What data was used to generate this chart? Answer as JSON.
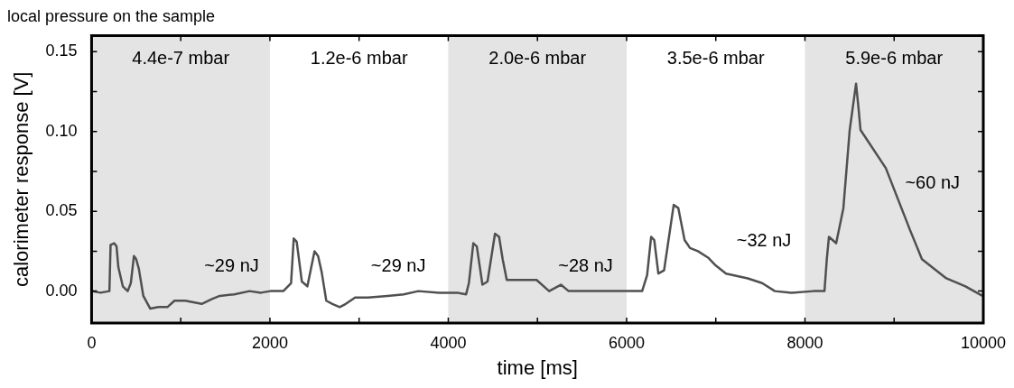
{
  "chart_data": {
    "type": "line",
    "title": "local pressure on the sample",
    "xlabel": "time [ms]",
    "ylabel": "calorimeter response [V]",
    "series": [
      {
        "color": "#505050",
        "x": [
          0,
          100,
          200,
          213,
          253,
          280,
          300,
          350,
          405,
          440,
          475,
          500,
          530,
          580,
          658,
          750,
          850,
          930,
          1050,
          1235,
          1350,
          1437,
          1600,
          1771,
          1900,
          2004,
          2150,
          2237,
          2267,
          2300,
          2358,
          2420,
          2500,
          2540,
          2580,
          2632,
          2700,
          2783,
          2850,
          2955,
          3100,
          3320,
          3500,
          3664,
          3900,
          4099,
          4200,
          4231,
          4281,
          4320,
          4383,
          4440,
          4524,
          4570,
          4610,
          4656,
          4800,
          4990,
          5131,
          5263,
          5350,
          5466,
          5700,
          5972,
          6174,
          6230,
          6275,
          6310,
          6356,
          6420,
          6528,
          6580,
          6650,
          6711,
          6800,
          6913,
          7000,
          7115,
          7358,
          7520,
          7662,
          7850,
          8097,
          8219,
          8245,
          8269,
          8350,
          8431,
          8502,
          8573,
          8600,
          8623,
          8907,
          9180,
          9312,
          9585,
          9800,
          9990
        ],
        "values": [
          0.0,
          -0.001,
          0.0,
          0.029,
          0.03,
          0.028,
          0.015,
          0.003,
          0.0,
          0.005,
          0.022,
          0.02,
          0.014,
          -0.003,
          -0.011,
          -0.01,
          -0.01,
          -0.006,
          -0.006,
          -0.008,
          -0.005,
          -0.003,
          -0.002,
          0.0,
          -0.001,
          0.0,
          0.0,
          0.005,
          0.033,
          0.031,
          0.006,
          0.003,
          0.025,
          0.022,
          0.012,
          -0.006,
          -0.008,
          -0.01,
          -0.008,
          -0.004,
          -0.004,
          -0.003,
          -0.002,
          0.0,
          -0.001,
          -0.001,
          -0.002,
          0.005,
          0.03,
          0.028,
          0.004,
          0.006,
          0.036,
          0.034,
          0.02,
          0.007,
          0.007,
          0.007,
          0.0,
          0.004,
          0.0,
          0.0,
          0.0,
          0.0,
          0.0,
          0.01,
          0.034,
          0.032,
          0.011,
          0.013,
          0.054,
          0.052,
          0.032,
          0.027,
          0.025,
          0.021,
          0.016,
          0.011,
          0.008,
          0.005,
          0.0,
          -0.001,
          0.0,
          0.0,
          0.02,
          0.034,
          0.03,
          0.052,
          0.101,
          0.13,
          0.115,
          0.101,
          0.077,
          0.038,
          0.02,
          0.008,
          0.003,
          -0.003
        ]
      }
    ],
    "xlim": [
      0,
      10000
    ],
    "ylim": [
      -0.02,
      0.16
    ],
    "xticks": [
      0,
      {
        "value": 1000,
        "label": null
      },
      2000,
      {
        "value": 3000,
        "label": null
      },
      4000,
      {
        "value": 5000,
        "label": null
      },
      6000,
      {
        "value": 7000,
        "label": null
      },
      8000,
      {
        "value": 9000,
        "label": null
      },
      10000
    ],
    "yticks": [
      {
        "value": 0,
        "label": "0.00"
      },
      {
        "value": 0.025,
        "label": null
      },
      {
        "value": 0.05,
        "label": "0.05"
      },
      {
        "value": 0.075,
        "label": null
      },
      {
        "value": 0.1,
        "label": "0.10"
      },
      {
        "value": 0.125,
        "label": null
      },
      {
        "value": 0.15,
        "label": "0.15"
      }
    ],
    "bands": [
      {
        "axis": "x",
        "from": 0,
        "to": 2000,
        "color": "#e4e4e4"
      },
      {
        "axis": "x",
        "from": 4000,
        "to": 6000,
        "color": "#e4e4e4"
      },
      {
        "axis": "x",
        "from": 8000,
        "to": 10000,
        "color": "#e4e4e4"
      }
    ],
    "annotations": [
      "4.4e-7 mbar",
      "1.2e-6 mbar",
      "2.0e-6 mbar",
      "3.5e-6 mbar",
      "5.9e-6 mbar",
      "~29 nJ",
      "~29 nJ",
      "~28 nJ",
      "~32 nJ",
      "~60 nJ"
    ],
    "grid": false,
    "legend": false,
    "marker": "none",
    "line_style": "solid"
  }
}
